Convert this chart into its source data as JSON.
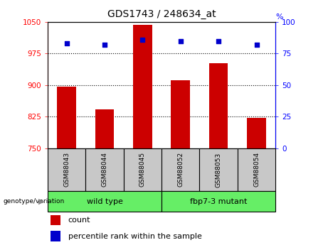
{
  "title": "GDS1743 / 248634_at",
  "samples": [
    "GSM88043",
    "GSM88044",
    "GSM88045",
    "GSM88052",
    "GSM88053",
    "GSM88054"
  ],
  "count_values": [
    897,
    843,
    1043,
    912,
    952,
    822
  ],
  "percentile_values": [
    83,
    82,
    86,
    85,
    85,
    82
  ],
  "group1_label": "wild type",
  "group2_label": "fbp7-3 mutant",
  "ylim_left": [
    750,
    1050
  ],
  "ylim_right": [
    0,
    100
  ],
  "yticks_left": [
    750,
    825,
    900,
    975,
    1050
  ],
  "yticks_right": [
    0,
    25,
    50,
    75,
    100
  ],
  "bar_color": "#CC0000",
  "dot_color": "#0000CC",
  "xlabel_area_color": "#c8c8c8",
  "group_area_color": "#66EE66",
  "bar_width": 0.5,
  "grid_vals": [
    825,
    900,
    975
  ],
  "legend_count_label": "count",
  "legend_pct_label": "percentile rank within the sample"
}
